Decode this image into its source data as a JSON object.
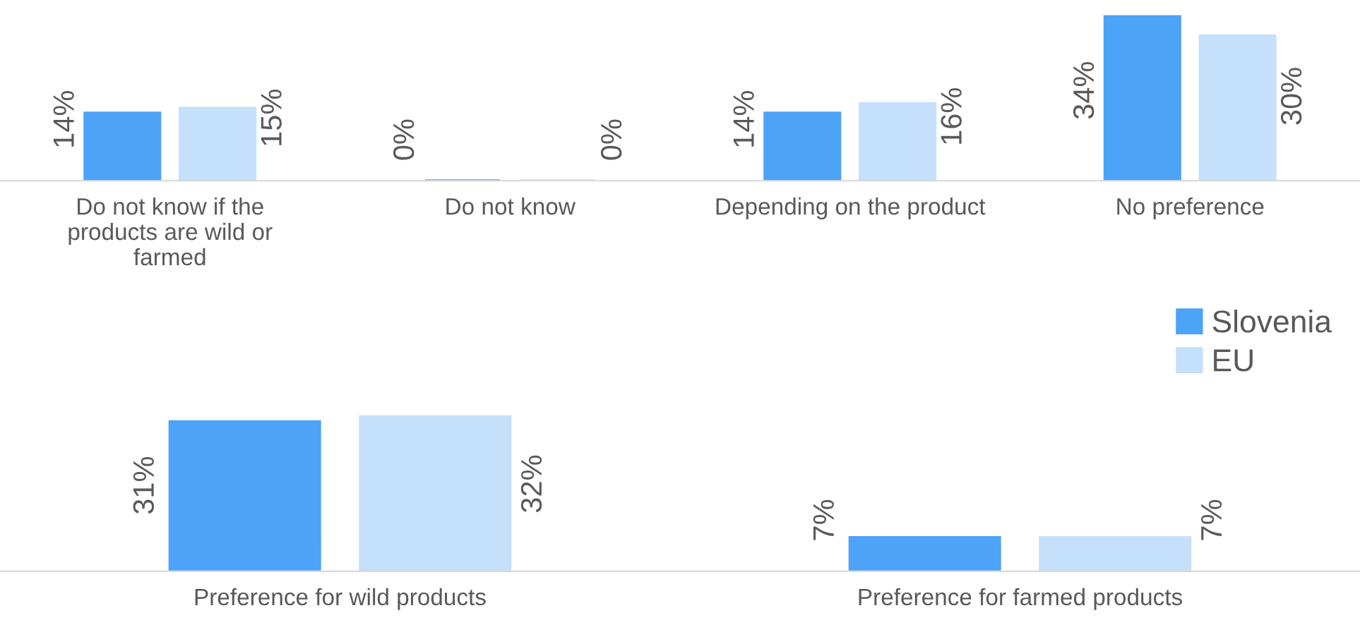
{
  "chart_data": [
    {
      "type": "bar",
      "categories": [
        "Do not know if the products are wild or farmed",
        "Do not know",
        "Depending on the product",
        "No preference"
      ],
      "series": [
        {
          "name": "Slovenia",
          "color": "#4da3f7",
          "values": [
            14,
            0,
            14,
            34
          ],
          "value_labels": [
            "14%",
            "0%",
            "14%",
            "34%"
          ]
        },
        {
          "name": "EU",
          "color": "#c5e0fa",
          "values": [
            15,
            0,
            16,
            30
          ],
          "value_labels": [
            "15%",
            "0%",
            "16%",
            "30%"
          ]
        }
      ],
      "legend": "bottom right"
    },
    {
      "type": "bar",
      "categories": [
        "Preference for wild products",
        "Preference for farmed products"
      ],
      "series": [
        {
          "color": "#4da3f7",
          "values": [
            31,
            7
          ],
          "value_labels": [
            "31%",
            "7%"
          ]
        },
        {
          "color": "#c5e0fa",
          "values": [
            32,
            7
          ],
          "value_labels": [
            "32%",
            "7%"
          ]
        }
      ]
    }
  ]
}
